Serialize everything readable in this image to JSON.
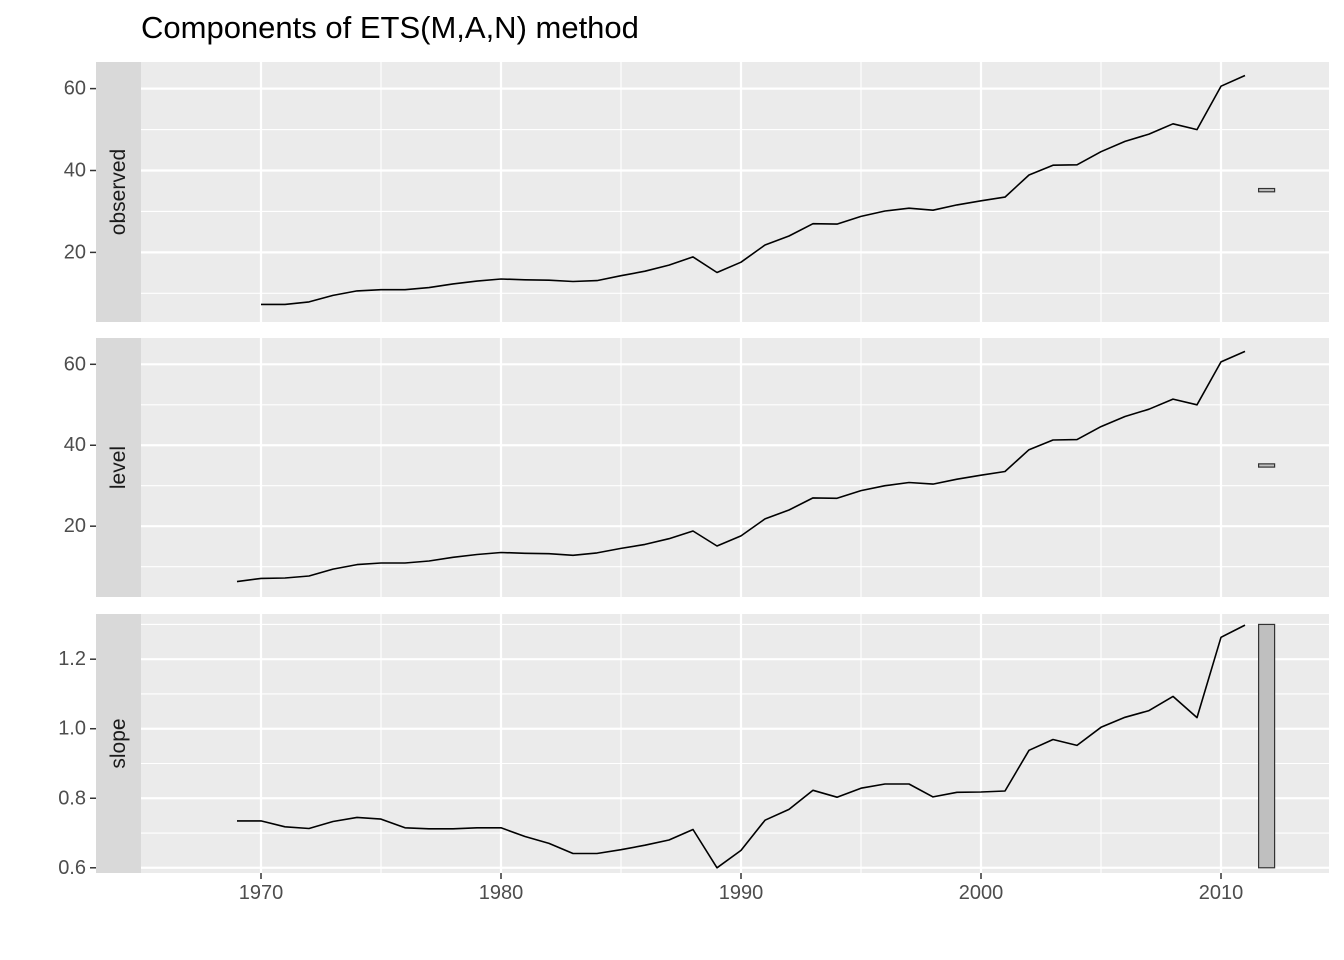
{
  "chart_data": {
    "type": "line",
    "title": "Components of ETS(M,A,N) method",
    "xlabel": "",
    "ylabel": "",
    "x_ticks": [
      1970,
      1980,
      1990,
      2000,
      2010
    ],
    "xlim": [
      1965,
      2014.5
    ],
    "grid": true,
    "legend": "none",
    "line_color": "#000000",
    "panel_background": "#ebebeb",
    "strip_background": "#d9d9d9",
    "bar_fill": "#bfbfbf",
    "panels": [
      {
        "name": "observed",
        "ylim": [
          3,
          66.5
        ],
        "y_ticks": [
          20,
          40,
          60
        ],
        "y_tick_labels": [
          "20",
          "40",
          "60"
        ],
        "series": {
          "x": [
            1970,
            1971,
            1972,
            1973,
            1974,
            1975,
            1976,
            1977,
            1978,
            1979,
            1980,
            1981,
            1982,
            1983,
            1984,
            1985,
            1986,
            1987,
            1988,
            1989,
            1990,
            1991,
            1992,
            1993,
            1994,
            1995,
            1996,
            1997,
            1998,
            1999,
            2000,
            2001,
            2002,
            2003,
            2004,
            2005,
            2006,
            2007,
            2008,
            2009,
            2010,
            2011
          ],
          "y": [
            7.3,
            7.3,
            7.9,
            9.5,
            10.6,
            10.9,
            10.9,
            11.4,
            12.3,
            13.0,
            13.5,
            13.3,
            13.2,
            12.9,
            13.1,
            14.3,
            15.4,
            16.9,
            18.9,
            15.1,
            17.6,
            21.8,
            24.0,
            27.0,
            26.9,
            28.8,
            30.1,
            30.8,
            30.3,
            31.6,
            32.6,
            33.5,
            38.9,
            41.3,
            41.4,
            44.6,
            47.1,
            48.9,
            51.4,
            50.0,
            60.6,
            63.2
          ]
        },
        "range_bar": {
          "x": 2011.9,
          "ymin": 34.8,
          "ymax": 35.6
        }
      },
      {
        "name": "level",
        "ylim": [
          2.5,
          66.5
        ],
        "y_ticks": [
          20,
          40,
          60
        ],
        "y_tick_labels": [
          "20",
          "40",
          "60"
        ],
        "series": {
          "x": [
            1969,
            1970,
            1971,
            1972,
            1973,
            1974,
            1975,
            1976,
            1977,
            1978,
            1979,
            1980,
            1981,
            1982,
            1983,
            1984,
            1985,
            1986,
            1987,
            1988,
            1989,
            1990,
            1991,
            1992,
            1993,
            1994,
            1995,
            1996,
            1997,
            1998,
            1999,
            2000,
            2001,
            2002,
            2003,
            2004,
            2005,
            2006,
            2007,
            2008,
            2009,
            2010,
            2011
          ],
          "y": [
            6.3,
            7.1,
            7.2,
            7.7,
            9.4,
            10.5,
            10.9,
            10.9,
            11.4,
            12.3,
            13.0,
            13.5,
            13.3,
            13.2,
            12.8,
            13.4,
            14.5,
            15.5,
            16.9,
            18.8,
            15.1,
            17.6,
            21.8,
            24.0,
            27.0,
            26.9,
            28.8,
            30.0,
            30.8,
            30.4,
            31.6,
            32.6,
            33.5,
            38.9,
            41.3,
            41.4,
            44.6,
            47.1,
            48.9,
            51.4,
            50.0,
            60.6,
            63.2
          ]
        },
        "range_bar": {
          "x": 2011.9,
          "ymin": 34.6,
          "ymax": 35.4
        }
      },
      {
        "name": "slope",
        "ylim": [
          0.585,
          1.33
        ],
        "y_ticks": [
          0.6,
          0.8,
          1.0,
          1.2
        ],
        "y_tick_labels": [
          "0.6",
          "0.8",
          "1.0",
          "1.2"
        ],
        "series": {
          "x": [
            1969,
            1970,
            1971,
            1972,
            1973,
            1974,
            1975,
            1976,
            1977,
            1978,
            1979,
            1980,
            1981,
            1982,
            1983,
            1984,
            1985,
            1986,
            1987,
            1988,
            1989,
            1990,
            1991,
            1992,
            1993,
            1994,
            1995,
            1996,
            1997,
            1998,
            1999,
            2000,
            2001,
            2002,
            2003,
            2004,
            2005,
            2006,
            2007,
            2008,
            2009,
            2010,
            2011
          ],
          "y": [
            0.735,
            0.735,
            0.718,
            0.713,
            0.733,
            0.745,
            0.74,
            0.715,
            0.712,
            0.712,
            0.715,
            0.715,
            0.69,
            0.67,
            0.641,
            0.641,
            0.652,
            0.665,
            0.68,
            0.71,
            0.6,
            0.65,
            0.737,
            0.768,
            0.823,
            0.803,
            0.829,
            0.841,
            0.841,
            0.804,
            0.817,
            0.818,
            0.821,
            0.938,
            0.969,
            0.952,
            1.004,
            1.033,
            1.052,
            1.093,
            1.032,
            1.263,
            1.298
          ]
        },
        "range_bar": {
          "x": 2011.9,
          "ymin": 0.6,
          "ymax": 1.3
        }
      }
    ]
  }
}
